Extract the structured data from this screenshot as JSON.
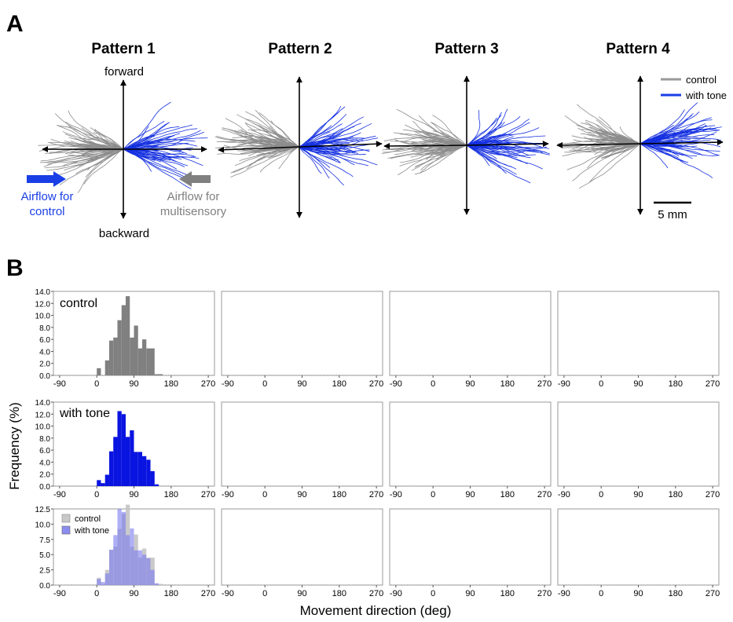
{
  "panel_a": {
    "label": "A",
    "titles": [
      "Pattern 1",
      "Pattern 2",
      "Pattern 3",
      "Pattern 4"
    ],
    "forward_label": "forward",
    "backward_label": "backward",
    "airflow_control": [
      "Airflow for",
      "control"
    ],
    "airflow_multisensory": [
      "Airflow for",
      "multisensory"
    ],
    "legend": [
      {
        "label": "control",
        "color": "#9a9a9a"
      },
      {
        "label": "with tone",
        "color": "#1a3ee6"
      }
    ],
    "scalebar_label": "5 mm",
    "colors": {
      "control": "#8c8c8c",
      "tone": "#1530e0",
      "airflow_control_arrow": "#1a3ee6",
      "airflow_multi_arrow": "#808080"
    }
  },
  "panel_b": {
    "label": "B",
    "y_axis_label": "Frequency (%)",
    "x_axis_label": "Movement direction (deg)",
    "row_labels": [
      "control",
      "with tone",
      ""
    ],
    "overlay_legend": [
      {
        "label": "control",
        "color": "#c8c8c8"
      },
      {
        "label": "with tone",
        "color": "#8c8cf0"
      }
    ],
    "colors": {
      "control": "#808080",
      "tone": "#0a14e0",
      "overlay_control": "#c4c4c4",
      "overlay_tone": "#7a7af0"
    }
  },
  "chart_data": [
    {
      "type": "bar",
      "row": "control",
      "xticks": [
        -90,
        0,
        90,
        180,
        270
      ],
      "xlim": [
        -105,
        285
      ],
      "bin_width_deg": 10,
      "bins_start_deg": 0,
      "yticks": [
        0.0,
        2.0,
        4.0,
        6.0,
        8.0,
        10.0,
        12.0,
        14.0
      ],
      "ylim": [
        0,
        14
      ],
      "series": [
        {
          "values": [
            1.2,
            0,
            2.5,
            5.8,
            6.3,
            9.2,
            11.7,
            13.2,
            6.3,
            8.3,
            4.5,
            6.0,
            4.5,
            4.5,
            0.2,
            0.2,
            0,
            0
          ]
        },
        {
          "values": [
            0,
            0,
            0,
            0,
            0,
            0,
            0,
            0,
            0,
            0,
            0,
            0,
            0,
            0,
            0,
            0,
            0,
            0
          ]
        },
        {
          "values": [
            0,
            0,
            0,
            0,
            0,
            0,
            0,
            0,
            0,
            0,
            0,
            0,
            0,
            0,
            0,
            0,
            0,
            0
          ]
        },
        {
          "values": [
            0,
            0,
            0,
            0,
            0,
            0,
            0,
            0,
            0,
            0,
            0,
            0,
            0,
            0,
            0,
            0,
            0,
            0
          ]
        }
      ]
    },
    {
      "type": "bar",
      "row": "with tone",
      "xticks": [
        -90,
        0,
        90,
        180,
        270
      ],
      "xlim": [
        -105,
        285
      ],
      "bin_width_deg": 10,
      "bins_start_deg": 0,
      "yticks": [
        0.0,
        2.0,
        4.0,
        6.0,
        8.0,
        10.0,
        12.0,
        14.0
      ],
      "ylim": [
        0,
        14
      ],
      "series": [
        {
          "values": [
            1.0,
            0.5,
            1.9,
            5.8,
            8.2,
            12.5,
            12.0,
            8.2,
            9.3,
            5.7,
            5.7,
            5.0,
            4.4,
            2.5,
            0.3,
            0,
            0,
            0
          ]
        },
        {
          "values": [
            0,
            0,
            0,
            0,
            0,
            0,
            0,
            0,
            0,
            0,
            0,
            0,
            0,
            0,
            0,
            0,
            0,
            0
          ]
        },
        {
          "values": [
            0,
            0,
            0,
            0,
            0,
            0,
            0,
            0,
            0,
            0,
            0,
            0,
            0,
            0,
            0,
            0,
            0,
            0
          ]
        },
        {
          "values": [
            0,
            0,
            0,
            0,
            0,
            0,
            0,
            0,
            0,
            0,
            0,
            0,
            0,
            0,
            0,
            0,
            0,
            0
          ]
        }
      ]
    },
    {
      "type": "bar",
      "row": "overlay",
      "xticks": [
        -90,
        0,
        90,
        180,
        270
      ],
      "xlim": [
        -105,
        285
      ],
      "bin_width_deg": 10,
      "bins_start_deg": 0,
      "yticks": [
        0.0,
        2.5,
        5.0,
        7.5,
        10.0,
        12.5
      ],
      "ylim": [
        0,
        12.5
      ]
    }
  ]
}
